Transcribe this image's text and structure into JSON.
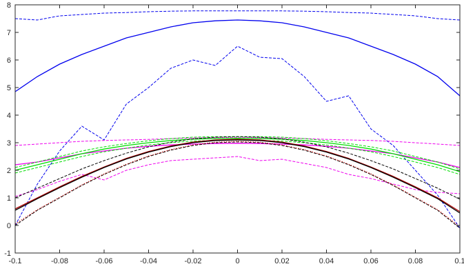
{
  "chart_data": {
    "type": "line",
    "title": "",
    "xlabel": "",
    "ylabel": "",
    "xlim": [
      -0.1,
      0.1
    ],
    "ylim": [
      -1,
      8
    ],
    "grid": false,
    "legend": "none",
    "x_ticks": [
      -0.1,
      -0.08,
      -0.06,
      -0.04,
      -0.02,
      0,
      0.02,
      0.04,
      0.06,
      0.08,
      0.1
    ],
    "x_tick_labels": [
      "-0.1",
      "-0.08",
      "-0.06",
      "-0.04",
      "-0.02",
      "0",
      "0.02",
      "0.04",
      "0.06",
      "0.08",
      "0.1"
    ],
    "y_ticks": [
      -1,
      0,
      1,
      2,
      3,
      4,
      5,
      6,
      7,
      8
    ],
    "y_tick_labels": [
      "-1",
      "0",
      "1",
      "2",
      "3",
      "4",
      "5",
      "6",
      "7",
      "8"
    ],
    "x": [
      -0.1,
      -0.09,
      -0.08,
      -0.07,
      -0.06,
      -0.05,
      -0.04,
      -0.03,
      -0.02,
      -0.01,
      0,
      0.01,
      0.02,
      0.03,
      0.04,
      0.05,
      0.06,
      0.07,
      0.08,
      0.09,
      0.1
    ],
    "series": [
      {
        "color": "#0000ee",
        "dash": "dashed",
        "values": [
          7.5,
          7.45,
          7.6,
          7.65,
          7.7,
          7.72,
          7.75,
          7.77,
          7.78,
          7.78,
          7.78,
          7.78,
          7.78,
          7.77,
          7.75,
          7.72,
          7.7,
          7.65,
          7.6,
          7.5,
          7.45
        ]
      },
      {
        "color": "#0000ee",
        "dash": "solid",
        "values": [
          4.85,
          5.4,
          5.85,
          6.2,
          6.5,
          6.8,
          7.0,
          7.2,
          7.35,
          7.42,
          7.45,
          7.42,
          7.35,
          7.2,
          7.0,
          6.8,
          6.5,
          6.2,
          5.85,
          5.4,
          4.7
        ]
      },
      {
        "color": "#0000ee",
        "dash": "dashed",
        "values": [
          0.0,
          1.5,
          2.7,
          3.6,
          3.1,
          4.4,
          5.0,
          5.7,
          6.0,
          5.8,
          6.5,
          6.1,
          6.05,
          5.4,
          4.5,
          4.7,
          3.5,
          2.9,
          2.0,
          1.1,
          -0.1
        ]
      },
      {
        "color": "#ee00ee",
        "dash": "dashed",
        "values": [
          2.9,
          2.95,
          3.0,
          3.05,
          3.08,
          3.1,
          3.12,
          3.15,
          3.17,
          3.18,
          3.18,
          3.18,
          3.17,
          3.15,
          3.12,
          3.1,
          3.08,
          3.05,
          3.0,
          2.95,
          2.9
        ]
      },
      {
        "color": "#ee00ee",
        "dash": "solid",
        "values": [
          2.2,
          2.3,
          2.45,
          2.6,
          2.7,
          2.8,
          2.87,
          2.92,
          2.95,
          2.97,
          2.98,
          2.97,
          2.95,
          2.92,
          2.87,
          2.8,
          2.7,
          2.6,
          2.45,
          2.3,
          2.1
        ]
      },
      {
        "color": "#ee00ee",
        "dash": "dashed",
        "values": [
          1.05,
          1.3,
          1.6,
          1.85,
          1.65,
          2.0,
          2.2,
          2.35,
          2.4,
          2.45,
          2.5,
          2.35,
          2.4,
          2.25,
          2.1,
          1.85,
          1.7,
          1.5,
          1.3,
          1.2,
          1.15
        ]
      },
      {
        "color": "#00dd00",
        "dash": "dashed",
        "values": [
          2.1,
          2.3,
          2.5,
          2.7,
          2.85,
          2.97,
          3.07,
          3.15,
          3.2,
          3.22,
          3.22,
          3.22,
          3.2,
          3.15,
          3.07,
          2.97,
          2.85,
          2.7,
          2.5,
          2.3,
          2.05
        ]
      },
      {
        "color": "#00dd00",
        "dash": "solid",
        "values": [
          2.0,
          2.2,
          2.4,
          2.6,
          2.77,
          2.9,
          3.0,
          3.08,
          3.13,
          3.15,
          3.16,
          3.15,
          3.13,
          3.08,
          3.0,
          2.9,
          2.77,
          2.6,
          2.4,
          2.2,
          1.95
        ]
      },
      {
        "color": "#00dd00",
        "dash": "dashed",
        "values": [
          1.9,
          2.1,
          2.3,
          2.5,
          2.67,
          2.8,
          2.92,
          3.0,
          3.06,
          3.08,
          3.1,
          3.08,
          3.06,
          3.0,
          2.92,
          2.8,
          2.67,
          2.5,
          2.3,
          2.1,
          1.85
        ]
      },
      {
        "color": "#000000",
        "dash": "dashed",
        "values": [
          1.0,
          1.35,
          1.7,
          2.05,
          2.35,
          2.62,
          2.85,
          3.02,
          3.14,
          3.2,
          3.22,
          3.2,
          3.14,
          3.02,
          2.85,
          2.62,
          2.35,
          2.05,
          1.7,
          1.35,
          0.95
        ]
      },
      {
        "color": "#aa0000",
        "dash": "solid",
        "values": [
          0.6,
          1.0,
          1.4,
          1.78,
          2.12,
          2.43,
          2.68,
          2.88,
          3.02,
          3.1,
          3.12,
          3.1,
          3.02,
          2.88,
          2.68,
          2.43,
          2.12,
          1.78,
          1.4,
          1.0,
          0.5
        ]
      },
      {
        "color": "#000000",
        "dash": "solid",
        "values": [
          0.55,
          0.97,
          1.37,
          1.75,
          2.1,
          2.41,
          2.66,
          2.86,
          3.0,
          3.08,
          3.1,
          3.08,
          3.0,
          2.86,
          2.66,
          2.41,
          2.1,
          1.75,
          1.37,
          0.97,
          0.45
        ]
      },
      {
        "color": "#000000",
        "dash": "dashed",
        "values": [
          0.0,
          0.55,
          1.0,
          1.45,
          1.85,
          2.2,
          2.5,
          2.73,
          2.9,
          3.0,
          3.03,
          3.0,
          2.9,
          2.73,
          2.5,
          2.2,
          1.85,
          1.45,
          1.0,
          0.55,
          -0.1
        ]
      },
      {
        "color": "#cc0000",
        "dash": "dotted",
        "values": [
          0.05,
          0.57,
          1.02,
          1.47,
          1.87,
          2.22,
          2.52,
          2.75,
          2.92,
          3.02,
          3.05,
          3.02,
          2.92,
          2.75,
          2.52,
          2.22,
          1.87,
          1.47,
          1.02,
          0.57,
          -0.05
        ]
      }
    ]
  }
}
